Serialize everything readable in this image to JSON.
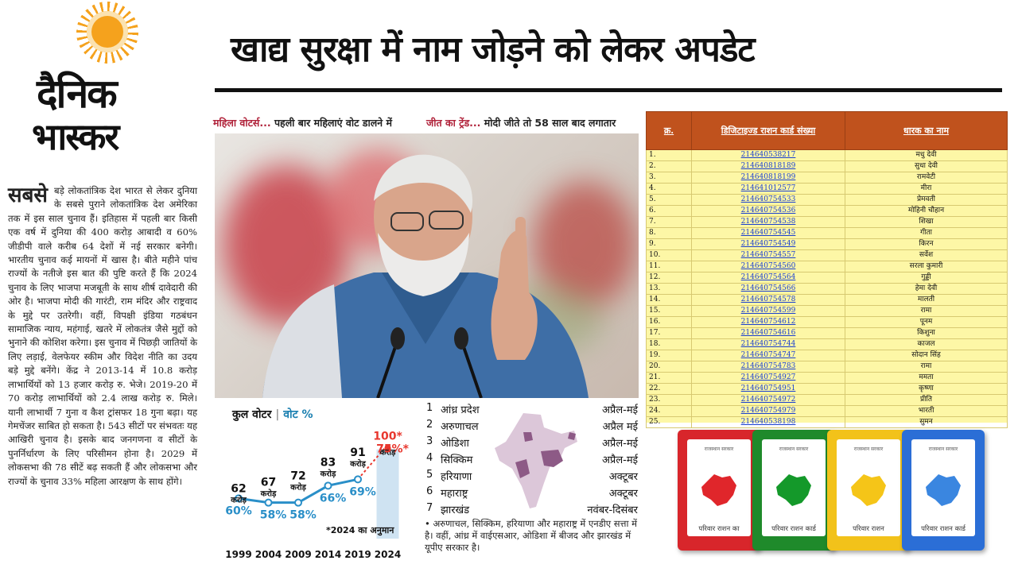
{
  "masthead": {
    "line1": "दैनिक",
    "line2": "भास्कर"
  },
  "headline": "खाद्य सुरक्षा में नाम जोड़ने को लेकर अपडेट",
  "article": {
    "dropword": "सबसे",
    "text": "बड़े लोकतांत्रिक देश भारत से लेकर दुनिया के सबसे पुराने लोकतांत्रिक देश अमेरिका तक में इस साल चुनाव हैं। इतिहास में पहली बार किसी एक वर्ष में दुनिया की 400 करोड़ आबादी व 60% जीडीपी वाले करीब 64 देशों में नई सरकार बनेगी। भारतीय चुनाव कई मायनों में खास है। बीते महीने पांच राज्यों के नतीजे इस बात की पुष्टि करते हैं कि 2024 चुनाव के लिए भाजपा मजबूती के साथ शीर्ष दावेदारी की ओर है। भाजपा मोदी की गारंटी, राम मंदिर और राष्ट्रवाद के मुद्दे पर उतरेगी। वहीं, विपक्षी इंडिया गठबंधन सामाजिक न्याय, महंगाई, खतरे में लोकतंत्र जैसे मुद्दों को भुनाने की कोशिश करेगा। इस चुनाव में पिछड़ी जातियों के लिए लड़ाई, वेलफेयर स्कीम और विदेश नीति का उदय बड़े मुद्दे बनेंगे। केंद्र ने 2013-14 में 10.8 करोड़ लाभार्थियों को 13 हजार करोड़ रु. भेजे। 2019-20 में 70 करोड़ लाभार्थियों को 2.4 लाख करोड़ रु. मिले। यानी लाभार्थी 7 गुना व कैश ट्रांसफर 18 गुना बढ़ा। यह गेमचेंजर साबित हो सकता है। 543 सीटों पर संभवतः यह आखिरी चुनाव है। इसके बाद जनगणना व सीटों के पुनर्निर्धारण के लिए परिसीमन होना है। 2029 में लोकसभा की 78 सीटें बढ़ सकती हैं और लोकसभा और राज्यों के चुनाव 33% महिला आरक्षण के साथ होंगे।"
  },
  "kickers": [
    {
      "bold": "महिला वोटर्स...",
      "rest": " पहली बार महिलाएं वोट डालने में"
    },
    {
      "bold": "जीत का ट्रेंड...",
      "rest": " मोदी जीते तो 58 साल बाद लगातार"
    }
  ],
  "chart_data": {
    "type": "bar",
    "title": "कुल वोटर",
    "subtitle": "वोट %",
    "categories": [
      "1999",
      "2004",
      "2009",
      "2014",
      "2019",
      "2024"
    ],
    "series": [
      {
        "name": "कुल वोटर",
        "values": [
          62,
          67,
          72,
          83,
          91,
          100
        ],
        "unit": "करोड़"
      },
      {
        "name": "वोट %",
        "values": [
          60,
          58,
          58,
          66,
          69,
          75
        ],
        "unit": "%"
      }
    ],
    "note": "*2024 का अनुमान",
    "colors": {
      "voters_bar": "#cfe3f2",
      "line": "#2a8fc8",
      "estimate": "#e8372e"
    }
  },
  "states": [
    {
      "no": "1",
      "name": "आंध्र प्रदेश",
      "month": "अप्रैल-मई"
    },
    {
      "no": "2",
      "name": "अरुणाचल",
      "month": "अप्रैल मई"
    },
    {
      "no": "3",
      "name": "ओडिशा",
      "month": "अप्रैल-मई"
    },
    {
      "no": "4",
      "name": "सिक्किम",
      "month": "अप्रैल-मई"
    },
    {
      "no": "5",
      "name": "हरियाणा",
      "month": "अक्टूबर"
    },
    {
      "no": "6",
      "name": "महाराष्ट्र",
      "month": "अक्टूबर"
    },
    {
      "no": "7",
      "name": "झारखंड",
      "month": "नवंबर-दिसंबर"
    }
  ],
  "states_note": "• अरुणाचल, सिक्किम, हरियाणा और महाराष्ट्र में एनडीए सत्ता में है। वहीं, आंध्र में वाईएसआर, ओडिशा में बीजद और झारखंड में यूपीए सरकार है।",
  "table": {
    "headers": [
      "क्र.",
      "डिजिटाइज्ड राशन कार्ड संख्या",
      "धारक का नाम"
    ],
    "rows": [
      [
        "1.",
        "214640538217",
        "मधु देवी"
      ],
      [
        "2.",
        "214640818189",
        "सुधा देवी"
      ],
      [
        "3.",
        "214640818199",
        "रामवेटी"
      ],
      [
        "4.",
        "214641012577",
        "मीरा"
      ],
      [
        "5.",
        "214640754533",
        "प्रेमवती"
      ],
      [
        "6.",
        "214640754536",
        "मोहिनी चौहान"
      ],
      [
        "7.",
        "214640754538",
        "शिखा"
      ],
      [
        "8.",
        "214640754545",
        "गीता"
      ],
      [
        "9.",
        "214640754549",
        "किरन"
      ],
      [
        "10.",
        "214640754557",
        "सर्वेश"
      ],
      [
        "11.",
        "214640754560",
        "सरला कुमारी"
      ],
      [
        "12.",
        "214640754564",
        "गुड्डी"
      ],
      [
        "13.",
        "214640754566",
        "हेमा देवी"
      ],
      [
        "14.",
        "214640754578",
        "मालती"
      ],
      [
        "15.",
        "214640754599",
        "रामा"
      ],
      [
        "16.",
        "214640754612",
        "पूनम"
      ],
      [
        "17.",
        "214640754616",
        "किशुना"
      ],
      [
        "18.",
        "214640754744",
        "काजल"
      ],
      [
        "19.",
        "214640754747",
        "सोदान सिंह"
      ],
      [
        "20.",
        "214640754783",
        "रामा"
      ],
      [
        "21.",
        "214640754927",
        "ममता"
      ],
      [
        "22.",
        "214640754951",
        "कृष्णा"
      ],
      [
        "23.",
        "214640754972",
        "प्रीति"
      ],
      [
        "24.",
        "214640754979",
        "भारती"
      ],
      [
        "25.",
        "214640538198",
        "सुमन"
      ]
    ]
  },
  "cards": [
    {
      "caption": "परिवार राशन का",
      "border": "#d8262b",
      "map": "#e0262b"
    },
    {
      "caption": "परिवार राशन कार्ड",
      "border": "#1f8a2b",
      "map": "#14992a"
    },
    {
      "caption": "परिवार राशन",
      "border": "#f2c21a",
      "map": "#f5c518"
    },
    {
      "caption": "परिवार राशन कार्ड",
      "border": "#2b6ed6",
      "map": "#3a86e0"
    }
  ],
  "card_top": "राजस्थान सरकार"
}
